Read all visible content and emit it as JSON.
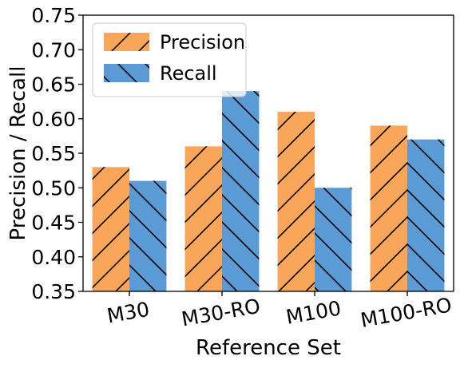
{
  "chart_data": {
    "type": "bar",
    "xlabel": "Reference Set",
    "ylabel": "Precision / Recall",
    "categories": [
      "M30",
      "M30-RO",
      "M100",
      "M100-RO"
    ],
    "ylim": [
      0.35,
      0.75
    ],
    "yticks": [
      "0.35",
      "0.40",
      "0.45",
      "0.50",
      "0.55",
      "0.60",
      "0.65",
      "0.70",
      "0.75"
    ],
    "series": [
      {
        "name": "Precision",
        "values": [
          0.53,
          0.56,
          0.61,
          0.59
        ],
        "color": "#F9A55A",
        "hatch": "forward-diagonal"
      },
      {
        "name": "Recall",
        "values": [
          0.51,
          0.64,
          0.5,
          0.57
        ],
        "color": "#5B9BD5",
        "hatch": "backward-diagonal"
      }
    ],
    "legend_position": "top-left",
    "xtick_rotation": -10,
    "grid": false
  }
}
